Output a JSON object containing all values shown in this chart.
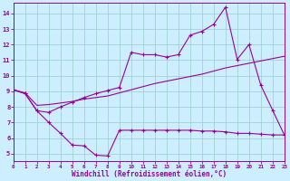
{
  "background_color": "#cceeff",
  "grid_color": "#99cccc",
  "line_color": "#990099",
  "xlabel": "Windchill (Refroidissement éolien,°C)",
  "xlim": [
    0,
    23
  ],
  "ylim": [
    4.5,
    14.7
  ],
  "ytick_vals": [
    5,
    6,
    7,
    8,
    9,
    10,
    11,
    12,
    13,
    14
  ],
  "xtick_vals": [
    0,
    1,
    2,
    3,
    4,
    5,
    6,
    7,
    8,
    9,
    10,
    11,
    12,
    13,
    14,
    15,
    16,
    17,
    18,
    19,
    20,
    21,
    22,
    23
  ],
  "curve_bottom_x": [
    0,
    1,
    2,
    3,
    4,
    5,
    6,
    7,
    8,
    9,
    10,
    11,
    12,
    13,
    14,
    15,
    16,
    17,
    18,
    19,
    20,
    21,
    22,
    23
  ],
  "curve_bottom_y": [
    9.1,
    8.85,
    7.75,
    7.0,
    6.3,
    5.55,
    5.5,
    4.9,
    4.85,
    6.5,
    6.5,
    6.5,
    6.5,
    6.5,
    6.5,
    6.5,
    6.45,
    6.45,
    6.4,
    6.3,
    6.3,
    6.25,
    6.2,
    6.2
  ],
  "curve_top_x": [
    0,
    1,
    2,
    3,
    4,
    5,
    6,
    7,
    8,
    9,
    10,
    11,
    12,
    13,
    14,
    15,
    16,
    17,
    18,
    19,
    20,
    21,
    22,
    23
  ],
  "curve_top_y": [
    9.1,
    8.85,
    7.75,
    7.65,
    8.0,
    8.3,
    8.6,
    8.85,
    9.05,
    9.25,
    11.5,
    11.35,
    11.35,
    11.2,
    11.35,
    12.6,
    12.85,
    13.3,
    14.4,
    11.05,
    12.0,
    9.4,
    7.8,
    6.2
  ],
  "curve_mid_x": [
    0,
    1,
    2,
    3,
    4,
    5,
    6,
    7,
    8,
    9,
    10,
    11,
    12,
    13,
    14,
    15,
    16,
    17,
    18,
    19,
    20,
    21,
    22,
    23
  ],
  "curve_mid_y": [
    9.1,
    8.9,
    8.1,
    8.15,
    8.25,
    8.35,
    8.5,
    8.6,
    8.7,
    8.9,
    9.1,
    9.3,
    9.5,
    9.65,
    9.8,
    9.95,
    10.1,
    10.3,
    10.5,
    10.65,
    10.8,
    10.95,
    11.1,
    11.25
  ]
}
